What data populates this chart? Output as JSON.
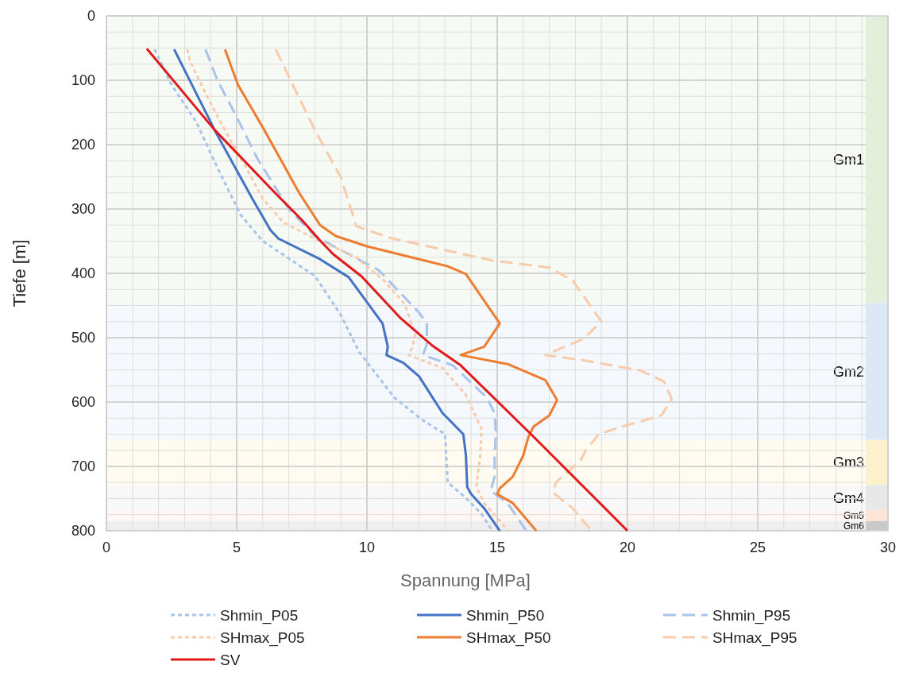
{
  "chart_data": {
    "type": "line",
    "xlabel": "Spannung [MPa]",
    "ylabel": "Tiefe [m]",
    "xlim": [
      0,
      30
    ],
    "ylim": [
      800,
      0
    ],
    "xticks": [
      0,
      {
        "value": 1,
        "label": null
      },
      {
        "value": 2,
        "label": null
      },
      {
        "value": 3,
        "label": null
      },
      {
        "value": 4,
        "label": null
      },
      5,
      {
        "value": 6,
        "label": null
      },
      {
        "value": 7,
        "label": null
      },
      {
        "value": 8,
        "label": null
      },
      {
        "value": 9,
        "label": null
      },
      10,
      {
        "value": 11,
        "label": null
      },
      {
        "value": 12,
        "label": null
      },
      {
        "value": 13,
        "label": null
      },
      {
        "value": 14,
        "label": null
      },
      15,
      {
        "value": 16,
        "label": null
      },
      {
        "value": 17,
        "label": null
      },
      {
        "value": 18,
        "label": null
      },
      {
        "value": 19,
        "label": null
      },
      20,
      {
        "value": 21,
        "label": null
      },
      {
        "value": 22,
        "label": null
      },
      {
        "value": 23,
        "label": null
      },
      {
        "value": 24,
        "label": null
      },
      25,
      {
        "value": 26,
        "label": null
      },
      {
        "value": 27,
        "label": null
      },
      {
        "value": 28,
        "label": null
      },
      {
        "value": 29,
        "label": null
      },
      30
    ],
    "yticks": [
      0,
      {
        "value": 25,
        "label": null
      },
      {
        "value": 50,
        "label": null
      },
      {
        "value": 75,
        "label": null
      },
      100,
      {
        "value": 125,
        "label": null
      },
      {
        "value": 150,
        "label": null
      },
      {
        "value": 175,
        "label": null
      },
      200,
      {
        "value": 225,
        "label": null
      },
      {
        "value": 250,
        "label": null
      },
      {
        "value": 275,
        "label": null
      },
      300,
      {
        "value": 325,
        "label": null
      },
      {
        "value": 350,
        "label": null
      },
      {
        "value": 375,
        "label": null
      },
      400,
      {
        "value": 425,
        "label": null
      },
      {
        "value": 450,
        "label": null
      },
      {
        "value": 475,
        "label": null
      },
      500,
      {
        "value": 525,
        "label": null
      },
      {
        "value": 550,
        "label": null
      },
      {
        "value": 575,
        "label": null
      },
      600,
      {
        "value": 625,
        "label": null
      },
      {
        "value": 650,
        "label": null
      },
      {
        "value": 675,
        "label": null
      },
      700,
      {
        "value": 725,
        "label": null
      },
      {
        "value": 750,
        "label": null
      },
      {
        "value": 775,
        "label": null
      },
      800
    ],
    "grid": true,
    "legend": "bottom",
    "marker": "none",
    "series": [
      {
        "name": "Shmin_P05",
        "color": "#a9c4e8",
        "line_style": "dashed_short",
        "x": [
          1.85,
          2.5,
          3.45,
          4.25,
          5.15,
          6.0,
          8.0,
          9.0,
          9.7,
          11.05,
          12.1,
          13.0,
          13.1,
          13.8,
          14.4,
          14.8
        ],
        "values": [
          52,
          107,
          165,
          235,
          309,
          350,
          404,
          465,
          522,
          593,
          627,
          650,
          725,
          749,
          774,
          799
        ]
      },
      {
        "name": "Shmin_P50",
        "color": "#4472c4",
        "line_style": "solid",
        "x": [
          2.6,
          4.2,
          5.6,
          6.3,
          6.6,
          8.2,
          9.3,
          10.6,
          10.8,
          10.75,
          11.4,
          12.0,
          12.9,
          13.7,
          13.8,
          13.85,
          14.0,
          14.5,
          15.1
        ],
        "values": [
          52,
          181,
          284,
          333,
          346,
          378,
          406,
          478,
          514,
          527,
          539,
          560,
          617,
          650,
          683,
          732,
          743,
          765,
          800
        ]
      },
      {
        "name": "Shmin_P95",
        "color": "#a9c4e8",
        "line_style": "dashed",
        "x": [
          3.8,
          4.25,
          5.0,
          5.8,
          7.0,
          8.0,
          10.45,
          12.0,
          12.3,
          12.3,
          12.15,
          13.3,
          14.6,
          14.9,
          14.95,
          14.9,
          14.9,
          14.75,
          15.4,
          16.1
        ],
        "values": [
          52,
          99,
          157,
          222,
          300,
          342,
          395,
          461,
          478,
          510,
          527,
          543,
          593,
          617,
          650,
          683,
          716,
          738,
          757,
          799
        ]
      },
      {
        "name": "SHmax_P05",
        "color": "#f8cbad",
        "line_style": "dashed_short",
        "x": [
          3.1,
          3.2,
          3.95,
          4.65,
          5.35,
          6.0,
          6.8,
          8.0,
          9.55,
          10.65,
          11.45,
          11.85,
          11.75,
          11.6,
          12.9,
          13.8,
          14.4,
          14.35,
          14.2,
          14.5,
          15.4
        ],
        "values": [
          52,
          70,
          132,
          185,
          235,
          284,
          321,
          346,
          374,
          411,
          448,
          494,
          514,
          527,
          547,
          589,
          642,
          683,
          732,
          757,
          799
        ]
      },
      {
        "name": "SHmax_P50",
        "color": "#ed7d31",
        "line_style": "solid",
        "x": [
          4.55,
          5.05,
          6.0,
          7.4,
          8.2,
          8.8,
          10.0,
          12.1,
          13.1,
          13.8,
          15.1,
          14.5,
          13.6,
          15.4,
          16.85,
          17.3,
          17.0,
          16.4,
          16.2,
          16.0,
          15.6,
          15.1,
          15.0,
          15.6,
          16.5
        ],
        "values": [
          52,
          107,
          173,
          275,
          325,
          342,
          358,
          379,
          389,
          401,
          478,
          514,
          527,
          541,
          566,
          597,
          621,
          638,
          654,
          683,
          716,
          734,
          743,
          757,
          800
        ]
      },
      {
        "name": "SHmax_P95",
        "color": "#f8cbad",
        "line_style": "dashed",
        "x": [
          6.5,
          7.2,
          8.0,
          9.0,
          9.6,
          10.9,
          14.8,
          17.0,
          17.9,
          19.0,
          18.3,
          16.85,
          18.3,
          20.5,
          21.4,
          21.7,
          21.3,
          19.8,
          18.9,
          18.4,
          18.2,
          17.25,
          17.15,
          17.9,
          18.6
        ],
        "values": [
          52,
          111,
          177,
          251,
          327,
          345,
          380,
          391,
          411,
          475,
          502,
          527,
          535,
          551,
          568,
          595,
          621,
          638,
          650,
          675,
          691,
          725,
          741,
          765,
          799
        ]
      },
      {
        "name": "SV",
        "color": "#e31a1c",
        "line_style": "solid",
        "x": [
          1.55,
          4.15,
          6.4,
          7.5,
          8.2,
          8.7,
          9.8,
          11.3,
          12.5,
          13.6,
          16.3,
          20.0
        ],
        "values": [
          51,
          177,
          272,
          317,
          349,
          370,
          405,
          470,
          512,
          543,
          650,
          800
        ]
      }
    ],
    "bands": [
      {
        "axis": "y",
        "from": 0,
        "to": 446,
        "label": "Gm1",
        "color": "#e2efda"
      },
      {
        "axis": "y",
        "from": 446,
        "to": 659,
        "label": "Gm2",
        "color": "#dde8f6"
      },
      {
        "axis": "y",
        "from": 659,
        "to": 729,
        "label": "Gm3",
        "color": "#fdf1cc"
      },
      {
        "axis": "y",
        "from": 729,
        "to": 768,
        "label": "Gm4",
        "color": "#e8e8e8"
      },
      {
        "axis": "y",
        "from": 768,
        "to": 785,
        "label": "Gm5",
        "color": "#fce4d6"
      },
      {
        "axis": "y",
        "from": 785,
        "to": 800,
        "label": "Gm6",
        "color": "#c9c9c9"
      }
    ]
  }
}
